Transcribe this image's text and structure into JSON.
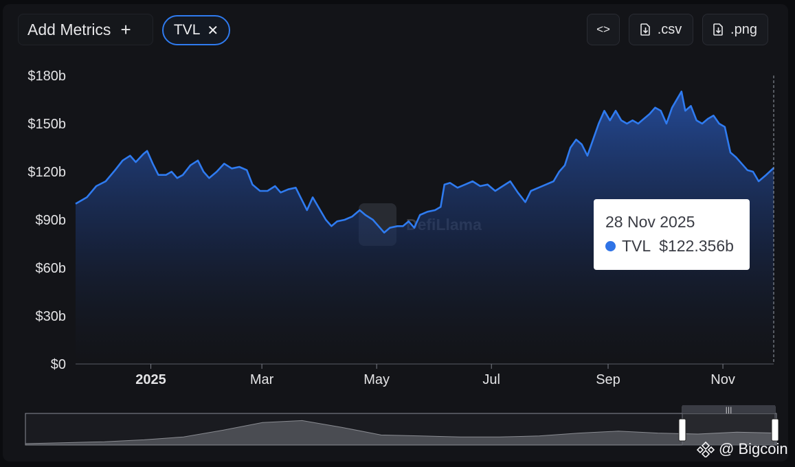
{
  "toolbar": {
    "add_metrics_label": "Add Metrics",
    "add_icon": "plus-icon",
    "metric_pill_label": "TVL",
    "metric_pill_icon": "close-icon",
    "embed_icon": "code-icon",
    "csv_label": ".csv",
    "png_label": ".png",
    "download_icon": "file-download-icon"
  },
  "tooltip": {
    "date": "28 Nov 2025",
    "series": "TVL",
    "value": "$122.356b",
    "dot_color": "#2f73e6"
  },
  "watermark": {
    "text": "DefiLlama"
  },
  "credit": {
    "text": "@ Bigcoin"
  },
  "colors": {
    "line": "#2f7bf0",
    "accent": "#2f7bf0",
    "background": "#131418"
  },
  "chart_data": {
    "type": "area",
    "title": "",
    "xlabel": "",
    "ylabel": "",
    "ylim": [
      0,
      180
    ],
    "y_unit": "billion USD",
    "y_ticks": [
      "$180b",
      "$150b",
      "$120b",
      "$90b",
      "$60b",
      "$30b",
      "$0"
    ],
    "x_ticks": [
      "2025",
      "Mar",
      "May",
      "Jul",
      "Sep",
      "Nov"
    ],
    "x_tick_dates": [
      "2025-01-01",
      "2025-03-01",
      "2025-05-01",
      "2025-07-01",
      "2025-09-01",
      "2025-11-01"
    ],
    "x_range": [
      "2024-11-22",
      "2025-11-28"
    ],
    "grid": false,
    "series": [
      {
        "name": "TVL",
        "points": [
          [
            "2024-11-22",
            100
          ],
          [
            "2024-11-28",
            104
          ],
          [
            "2024-12-03",
            111
          ],
          [
            "2024-12-08",
            114
          ],
          [
            "2024-12-13",
            121
          ],
          [
            "2024-12-17",
            127
          ],
          [
            "2024-12-21",
            130
          ],
          [
            "2024-12-24",
            126
          ],
          [
            "2024-12-28",
            131
          ],
          [
            "2024-12-30",
            133
          ],
          [
            "2025-01-02",
            125
          ],
          [
            "2025-01-05",
            118
          ],
          [
            "2025-01-09",
            118
          ],
          [
            "2025-01-12",
            120
          ],
          [
            "2025-01-15",
            116
          ],
          [
            "2025-01-18",
            118
          ],
          [
            "2025-01-22",
            124
          ],
          [
            "2025-01-26",
            127
          ],
          [
            "2025-01-29",
            120
          ],
          [
            "2025-02-01",
            116
          ],
          [
            "2025-02-05",
            120
          ],
          [
            "2025-02-09",
            125
          ],
          [
            "2025-02-13",
            122
          ],
          [
            "2025-02-17",
            123
          ],
          [
            "2025-02-21",
            121
          ],
          [
            "2025-02-24",
            112
          ],
          [
            "2025-02-28",
            108
          ],
          [
            "2025-03-04",
            108
          ],
          [
            "2025-03-08",
            111
          ],
          [
            "2025-03-11",
            107
          ],
          [
            "2025-03-15",
            109
          ],
          [
            "2025-03-19",
            110
          ],
          [
            "2025-03-22",
            103
          ],
          [
            "2025-03-25",
            96
          ],
          [
            "2025-03-28",
            104
          ],
          [
            "2025-04-01",
            96
          ],
          [
            "2025-04-04",
            90
          ],
          [
            "2025-04-07",
            86
          ],
          [
            "2025-04-10",
            89
          ],
          [
            "2025-04-14",
            90
          ],
          [
            "2025-04-18",
            92
          ],
          [
            "2025-04-22",
            96
          ],
          [
            "2025-04-25",
            93
          ],
          [
            "2025-04-29",
            90
          ],
          [
            "2025-05-02",
            86
          ],
          [
            "2025-05-05",
            82
          ],
          [
            "2025-05-08",
            85
          ],
          [
            "2025-05-12",
            86
          ],
          [
            "2025-05-15",
            86
          ],
          [
            "2025-05-18",
            89
          ],
          [
            "2025-05-21",
            85
          ],
          [
            "2025-05-24",
            93
          ],
          [
            "2025-05-28",
            95
          ],
          [
            "2025-06-01",
            96
          ],
          [
            "2025-06-04",
            98
          ],
          [
            "2025-06-06",
            112
          ],
          [
            "2025-06-09",
            113
          ],
          [
            "2025-06-13",
            110
          ],
          [
            "2025-06-17",
            112
          ],
          [
            "2025-06-21",
            114
          ],
          [
            "2025-06-25",
            111
          ],
          [
            "2025-06-29",
            112
          ],
          [
            "2025-07-03",
            108
          ],
          [
            "2025-07-07",
            111
          ],
          [
            "2025-07-11",
            114
          ],
          [
            "2025-07-15",
            107
          ],
          [
            "2025-07-19",
            101
          ],
          [
            "2025-07-22",
            108
          ],
          [
            "2025-07-26",
            110
          ],
          [
            "2025-07-30",
            112
          ],
          [
            "2025-08-03",
            114
          ],
          [
            "2025-08-06",
            120
          ],
          [
            "2025-08-09",
            124
          ],
          [
            "2025-08-12",
            135
          ],
          [
            "2025-08-15",
            140
          ],
          [
            "2025-08-18",
            137
          ],
          [
            "2025-08-21",
            130
          ],
          [
            "2025-08-24",
            140
          ],
          [
            "2025-08-27",
            150
          ],
          [
            "2025-08-30",
            158
          ],
          [
            "2025-09-02",
            152
          ],
          [
            "2025-09-05",
            158
          ],
          [
            "2025-09-08",
            152
          ],
          [
            "2025-09-11",
            150
          ],
          [
            "2025-09-14",
            152
          ],
          [
            "2025-09-17",
            150
          ],
          [
            "2025-09-20",
            153
          ],
          [
            "2025-09-23",
            156
          ],
          [
            "2025-09-26",
            160
          ],
          [
            "2025-09-29",
            158
          ],
          [
            "2025-10-02",
            150
          ],
          [
            "2025-10-05",
            160
          ],
          [
            "2025-10-08",
            166
          ],
          [
            "2025-10-10",
            170
          ],
          [
            "2025-10-12",
            158
          ],
          [
            "2025-10-15",
            161
          ],
          [
            "2025-10-18",
            152
          ],
          [
            "2025-10-21",
            150
          ],
          [
            "2025-10-24",
            153
          ],
          [
            "2025-10-27",
            155
          ],
          [
            "2025-10-30",
            150
          ],
          [
            "2025-11-02",
            148
          ],
          [
            "2025-11-05",
            132
          ],
          [
            "2025-11-08",
            129
          ],
          [
            "2025-11-11",
            125
          ],
          [
            "2025-11-14",
            121
          ],
          [
            "2025-11-17",
            120
          ],
          [
            "2025-11-20",
            114
          ],
          [
            "2025-11-24",
            118
          ],
          [
            "2025-11-28",
            122.356
          ]
        ]
      }
    ],
    "brush": {
      "range_start": "2024-11-22",
      "range_end": "2025-11-28",
      "history": [
        0.0,
        0.01,
        0.02,
        0.04,
        0.07,
        0.14,
        0.22,
        0.24,
        0.17,
        0.09,
        0.08,
        0.07,
        0.07,
        0.08,
        0.11,
        0.13,
        0.11,
        0.1,
        0.12,
        0.11
      ]
    }
  }
}
